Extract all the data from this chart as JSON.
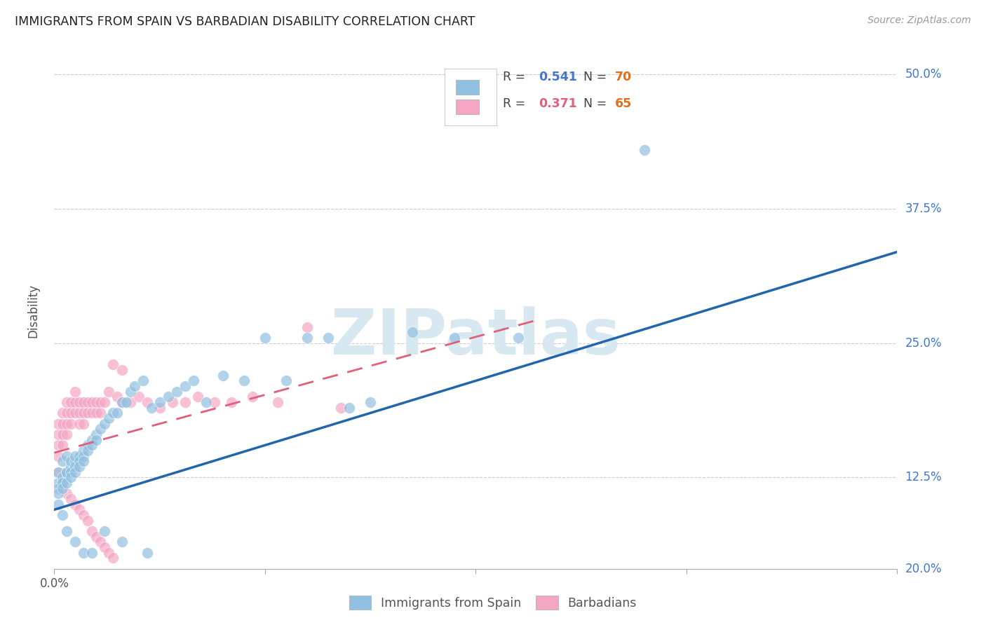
{
  "title": "IMMIGRANTS FROM SPAIN VS BARBADIAN DISABILITY CORRELATION CHART",
  "source": "Source: ZipAtlas.com",
  "ylabel": "Disability",
  "xlim": [
    0.0,
    0.2
  ],
  "ylim": [
    0.04,
    0.52
  ],
  "ytick_vals": [
    0.125,
    0.25,
    0.375,
    0.5
  ],
  "ytick_labels": [
    "12.5%",
    "25.0%",
    "37.5%",
    "50.0%"
  ],
  "xtick_vals": [
    0.0,
    0.05,
    0.1,
    0.15,
    0.2
  ],
  "blue_R": "0.541",
  "blue_N": "70",
  "pink_R": "0.371",
  "pink_N": "65",
  "blue_color": "#92c0e0",
  "pink_color": "#f4a6c4",
  "blue_line_color": "#2166ac",
  "pink_line_color": "#e0607a",
  "legend_text_color": "#4477cc",
  "n_color": "#e07020",
  "watermark": "ZIPatlas",
  "blue_line_x": [
    0.0,
    0.2
  ],
  "blue_line_y": [
    0.095,
    0.335
  ],
  "pink_line_x": [
    0.0,
    0.115
  ],
  "pink_line_y": [
    0.148,
    0.272
  ],
  "blue_x": [
    0.001,
    0.001,
    0.001,
    0.001,
    0.002,
    0.002,
    0.002,
    0.002,
    0.003,
    0.003,
    0.003,
    0.003,
    0.004,
    0.004,
    0.004,
    0.004,
    0.005,
    0.005,
    0.005,
    0.005,
    0.006,
    0.006,
    0.006,
    0.007,
    0.007,
    0.007,
    0.008,
    0.008,
    0.009,
    0.009,
    0.01,
    0.01,
    0.011,
    0.012,
    0.013,
    0.014,
    0.015,
    0.016,
    0.017,
    0.018,
    0.019,
    0.021,
    0.023,
    0.025,
    0.027,
    0.029,
    0.031,
    0.033,
    0.036,
    0.04,
    0.045,
    0.05,
    0.055,
    0.06,
    0.065,
    0.07,
    0.075,
    0.085,
    0.095,
    0.11,
    0.001,
    0.002,
    0.003,
    0.005,
    0.007,
    0.009,
    0.012,
    0.016,
    0.022,
    0.14
  ],
  "blue_y": [
    0.12,
    0.115,
    0.11,
    0.13,
    0.125,
    0.12,
    0.115,
    0.14,
    0.13,
    0.12,
    0.145,
    0.13,
    0.135,
    0.14,
    0.13,
    0.125,
    0.14,
    0.145,
    0.135,
    0.13,
    0.145,
    0.14,
    0.135,
    0.15,
    0.145,
    0.14,
    0.155,
    0.15,
    0.16,
    0.155,
    0.165,
    0.16,
    0.17,
    0.175,
    0.18,
    0.185,
    0.185,
    0.195,
    0.195,
    0.205,
    0.21,
    0.215,
    0.19,
    0.195,
    0.2,
    0.205,
    0.21,
    0.215,
    0.195,
    0.22,
    0.215,
    0.255,
    0.215,
    0.255,
    0.255,
    0.19,
    0.195,
    0.26,
    0.255,
    0.255,
    0.1,
    0.09,
    0.075,
    0.065,
    0.055,
    0.055,
    0.075,
    0.065,
    0.055,
    0.43
  ],
  "pink_x": [
    0.001,
    0.001,
    0.001,
    0.001,
    0.002,
    0.002,
    0.002,
    0.002,
    0.003,
    0.003,
    0.003,
    0.003,
    0.004,
    0.004,
    0.004,
    0.005,
    0.005,
    0.005,
    0.006,
    0.006,
    0.006,
    0.007,
    0.007,
    0.007,
    0.008,
    0.008,
    0.009,
    0.009,
    0.01,
    0.01,
    0.011,
    0.011,
    0.012,
    0.013,
    0.014,
    0.015,
    0.016,
    0.018,
    0.02,
    0.022,
    0.025,
    0.028,
    0.031,
    0.034,
    0.038,
    0.042,
    0.047,
    0.053,
    0.06,
    0.068,
    0.001,
    0.002,
    0.003,
    0.004,
    0.005,
    0.006,
    0.007,
    0.008,
    0.009,
    0.01,
    0.011,
    0.012,
    0.013,
    0.014,
    0.016
  ],
  "pink_y": [
    0.145,
    0.155,
    0.165,
    0.175,
    0.155,
    0.165,
    0.175,
    0.185,
    0.165,
    0.175,
    0.185,
    0.195,
    0.175,
    0.185,
    0.195,
    0.185,
    0.195,
    0.205,
    0.175,
    0.185,
    0.195,
    0.175,
    0.185,
    0.195,
    0.185,
    0.195,
    0.185,
    0.195,
    0.185,
    0.195,
    0.185,
    0.195,
    0.195,
    0.205,
    0.23,
    0.2,
    0.195,
    0.195,
    0.2,
    0.195,
    0.19,
    0.195,
    0.195,
    0.2,
    0.195,
    0.195,
    0.2,
    0.195,
    0.265,
    0.19,
    0.13,
    0.12,
    0.11,
    0.105,
    0.1,
    0.095,
    0.09,
    0.085,
    0.075,
    0.07,
    0.065,
    0.06,
    0.055,
    0.05,
    0.225
  ]
}
